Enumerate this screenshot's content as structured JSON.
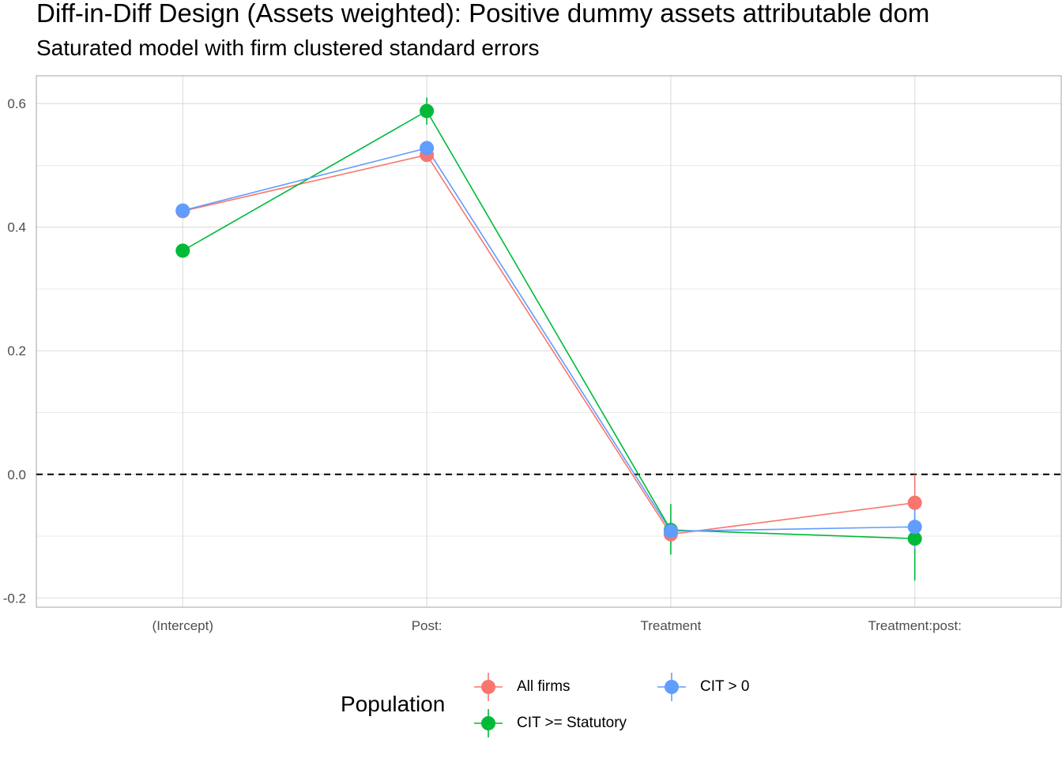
{
  "chart_data": {
    "type": "line",
    "title": "Diff-in-Diff Design (Assets weighted): Positive dummy assets attributable dom",
    "subtitle": "Saturated model with firm clustered standard errors",
    "categories": [
      "(Intercept)",
      "Post:",
      "Treatment",
      "Treatment:post:"
    ],
    "ylim": [
      -0.215,
      0.645
    ],
    "yticks": [
      -0.2,
      0.0,
      0.2,
      0.4,
      0.6
    ],
    "ytick_labels": [
      "-0.2",
      "0.0",
      "0.2",
      "0.4",
      "0.6"
    ],
    "reference_line": {
      "y": 0.0,
      "style": "dashed"
    },
    "grid": true,
    "legend_title": "Population",
    "legend_position": "bottom",
    "series": [
      {
        "name": "All firms",
        "color": "#F8766D",
        "values": [
          0.426,
          0.517,
          -0.097,
          -0.046
        ],
        "lower": [
          0.419,
          0.509,
          -0.112,
          -0.092
        ],
        "upper": [
          0.433,
          0.525,
          -0.082,
          0.0
        ]
      },
      {
        "name": "CIT >= Statutory",
        "color": "#00BA38",
        "values": [
          0.362,
          0.588,
          -0.09,
          -0.104
        ],
        "lower": [
          0.354,
          0.566,
          -0.13,
          -0.172
        ],
        "upper": [
          0.37,
          0.61,
          -0.048,
          -0.036
        ]
      },
      {
        "name": "CIT > 0",
        "color": "#619CFF",
        "values": [
          0.427,
          0.528,
          -0.092,
          -0.085
        ],
        "lower": [
          0.42,
          0.52,
          -0.106,
          -0.121
        ],
        "upper": [
          0.434,
          0.536,
          -0.078,
          -0.049
        ]
      }
    ]
  }
}
